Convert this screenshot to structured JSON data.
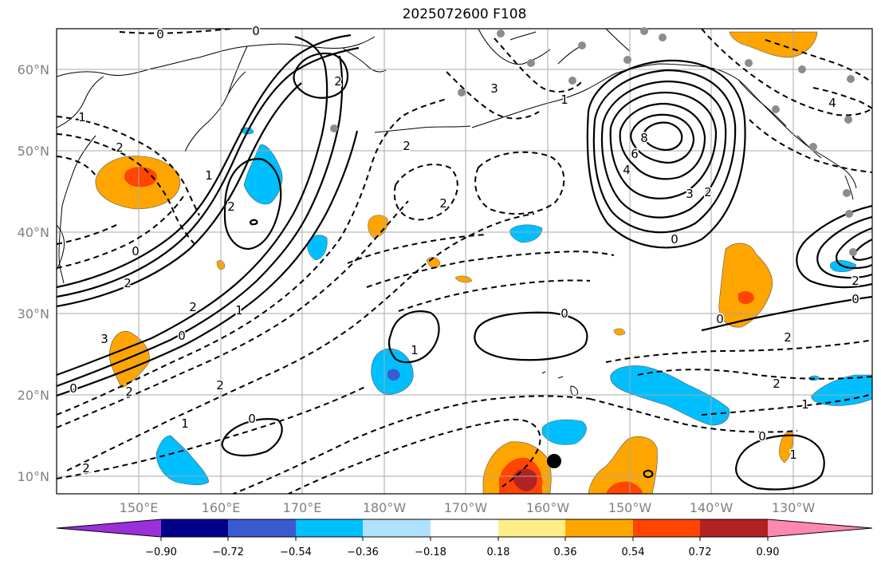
{
  "title": "2025072600 F108",
  "map": {
    "lat_labels": [
      "60°N",
      "50°N",
      "40°N",
      "30°N",
      "20°N",
      "10°N"
    ],
    "lon_labels": [
      "150°E",
      "160°E",
      "170°E",
      "180°W",
      "170°W",
      "160°W",
      "150°W",
      "140°W",
      "130°W"
    ]
  },
  "colorbar": {
    "colors": [
      "#9b30d9",
      "#00008b",
      "#3a5bd0",
      "#00bfff",
      "#b0e2ff",
      "#ffffff",
      "#ffee88",
      "#ffa500",
      "#ff4500",
      "#b22222",
      "#ff88b0"
    ],
    "tick_labels": [
      "−0.90",
      "−0.72",
      "−0.54",
      "−0.36",
      "−0.18",
      "0.18",
      "0.36",
      "0.54",
      "0.72",
      "0.90"
    ]
  },
  "contour_labels": [
    "0",
    "0",
    "2",
    "1",
    "2",
    "2",
    "0",
    "2",
    "1",
    "2",
    "3",
    "1",
    "0",
    "2",
    "0",
    "1",
    "2",
    "8",
    "6",
    "4",
    "3",
    "2",
    "0",
    "4",
    "3",
    "1",
    "2",
    "0",
    "0",
    "2",
    "2",
    "1",
    "0",
    "1",
    "0",
    "1",
    "0",
    "2",
    "1",
    "2",
    "2"
  ]
}
